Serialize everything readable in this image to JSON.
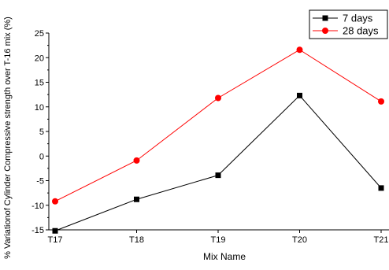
{
  "chart_data": {
    "type": "line",
    "xlabel": "Mix Name",
    "ylabel": "% Variationof Cylinder Compressive strength over  T-16 mix (%)",
    "categories": [
      "T17",
      "T18",
      "T19",
      "T20",
      "T21"
    ],
    "ylim": [
      -15,
      25
    ],
    "yticks": [
      -15,
      -10,
      -5,
      0,
      5,
      10,
      15,
      20,
      25
    ],
    "grid": false,
    "legend_position": "top-right",
    "series": [
      {
        "name": "7 days",
        "values": [
          -15.2,
          -8.8,
          -3.9,
          12.3,
          -6.5
        ],
        "color": "#000000",
        "marker": "square"
      },
      {
        "name": "28 days",
        "values": [
          -9.2,
          -0.9,
          11.8,
          21.6,
          11.1
        ],
        "color": "#ff0000",
        "marker": "circle"
      }
    ]
  }
}
